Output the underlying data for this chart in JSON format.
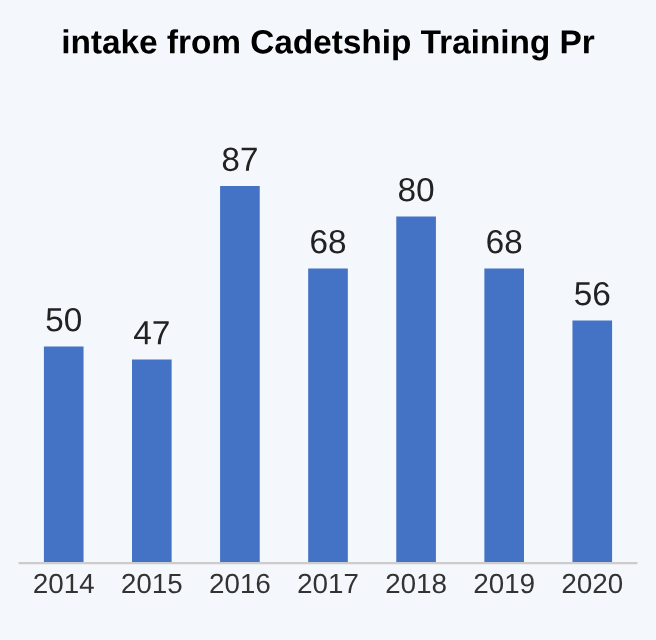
{
  "chart_data": {
    "type": "bar",
    "title": "intake from Cadetship Training Pr",
    "categories": [
      "2014",
      "2015",
      "2016",
      "2017",
      "2018",
      "2019",
      "2020"
    ],
    "values": [
      50,
      47,
      87,
      68,
      80,
      68,
      56
    ],
    "color": "#4472c4",
    "data_labels": true,
    "grid": false
  }
}
